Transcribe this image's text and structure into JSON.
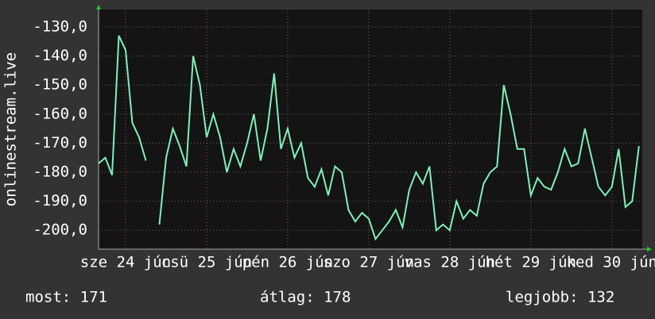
{
  "chart_data": {
    "type": "line",
    "ylabel": "onlinestream.live",
    "x": [
      0,
      2,
      4,
      6,
      8,
      10,
      12,
      14,
      16,
      18,
      20,
      22,
      24,
      26,
      28,
      30,
      32,
      34,
      36,
      38,
      40,
      42,
      44,
      46,
      48,
      50,
      52,
      54,
      56,
      58,
      60,
      62,
      64,
      66,
      68,
      70,
      72,
      74,
      76,
      78,
      80,
      82,
      84,
      86,
      88,
      90,
      92,
      94,
      96,
      98,
      100,
      102,
      104,
      106,
      108,
      110,
      112,
      114,
      116,
      118,
      120,
      122,
      124,
      126,
      128,
      130,
      132,
      134,
      136,
      138,
      140,
      142,
      144,
      146,
      148,
      150,
      152,
      154,
      156,
      158,
      160
    ],
    "series": [
      {
        "name": "onlinestream.live",
        "color": "#80f0b8",
        "values": [
          -177,
          -175,
          -181,
          -133,
          -138,
          -163,
          -168,
          -176,
          null,
          -198,
          -175,
          -165,
          -171,
          -178,
          -140,
          -150,
          -168,
          -160,
          -168,
          -180,
          -172,
          -178,
          -170,
          -160,
          -176,
          -165,
          -146,
          -172,
          -165,
          -175,
          -170,
          -182,
          -185,
          -179,
          -188,
          -178,
          -180,
          -193,
          -197,
          -194,
          -196,
          -203,
          -200,
          -197,
          -193,
          -199,
          -186,
          -180,
          -184,
          -178,
          -200,
          -198,
          -200,
          -190,
          -196,
          -193,
          -195,
          -184,
          -180,
          -178,
          -150,
          -160,
          -172,
          -172,
          -188,
          -182,
          -185,
          -186,
          -180,
          -172,
          -178,
          -177,
          -165,
          -175,
          -185,
          -188,
          -185,
          -172,
          -192,
          -190,
          -171
        ]
      }
    ],
    "xlim": [
      0,
      161
    ],
    "xticks": [
      {
        "value": 8,
        "label": "sze 24 jún"
      },
      {
        "value": 32,
        "label": "csü 25 jún"
      },
      {
        "value": 56,
        "label": "pén 26 jún"
      },
      {
        "value": 80,
        "label": "szo 27 jún"
      },
      {
        "value": 104,
        "label": "vas 28 jún"
      },
      {
        "value": 128,
        "label": "hét 29 jún"
      },
      {
        "value": 152,
        "label": "ked 30 jún"
      }
    ],
    "ylim": [
      -206.5,
      -124
    ],
    "yticks": [
      {
        "value": -130,
        "label": "-130,0"
      },
      {
        "value": -140,
        "label": "-140,0"
      },
      {
        "value": -150,
        "label": "-150,0"
      },
      {
        "value": -160,
        "label": "-160,0"
      },
      {
        "value": -170,
        "label": "-170,0"
      },
      {
        "value": -180,
        "label": "-180,0"
      },
      {
        "value": -190,
        "label": "-190,0"
      },
      {
        "value": -200,
        "label": "-200,0"
      }
    ],
    "grid": true
  },
  "footer": {
    "current": "most: 171",
    "average": "átlag: 178",
    "best": "legjobb: 132"
  }
}
